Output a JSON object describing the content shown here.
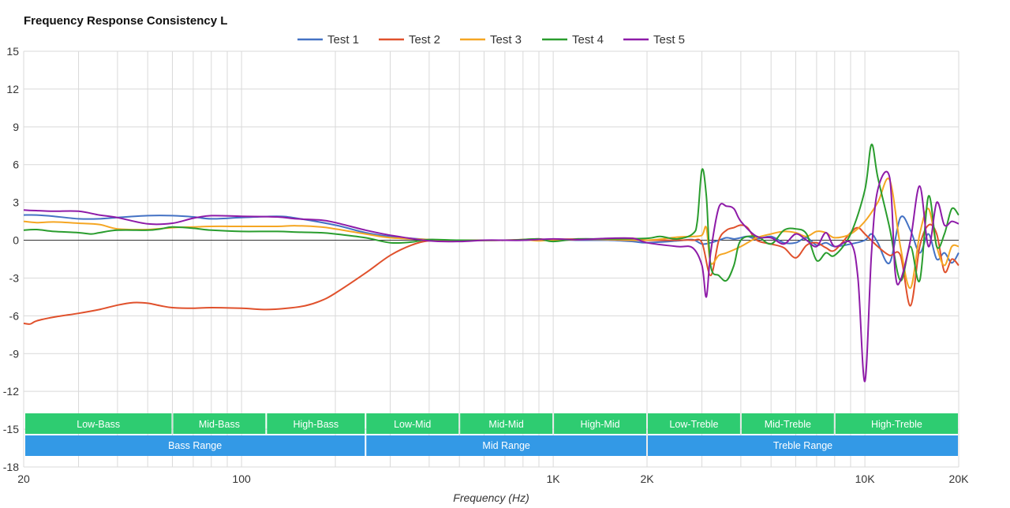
{
  "title": "Frequency Response Consistency L",
  "chart_data": {
    "type": "line",
    "title": "Frequency Response Consistency L",
    "xlabel": "Frequency (Hz)",
    "ylabel": "",
    "xscale": "log",
    "xlim": [
      20,
      20000
    ],
    "ylim": [
      -18,
      15
    ],
    "yticks": [
      15,
      12,
      9,
      6,
      3,
      0,
      -3,
      -6,
      -9,
      -12,
      -15,
      -18
    ],
    "xticks": [
      {
        "value": 20,
        "label": "20"
      },
      {
        "value": 100,
        "label": "100"
      },
      {
        "value": 1000,
        "label": "1K"
      },
      {
        "value": 2000,
        "label": "2K"
      },
      {
        "value": 10000,
        "label": "10K"
      },
      {
        "value": 20000,
        "label": "20K"
      }
    ],
    "grid": true,
    "legend_position": "top-center",
    "series": [
      {
        "name": "Test 1",
        "color": "#4472c4",
        "points": [
          [
            20,
            2.0
          ],
          [
            22,
            2.0
          ],
          [
            25,
            1.9
          ],
          [
            30,
            1.7
          ],
          [
            35,
            1.7
          ],
          [
            40,
            1.8
          ],
          [
            50,
            1.95
          ],
          [
            60,
            1.95
          ],
          [
            70,
            1.85
          ],
          [
            80,
            1.7
          ],
          [
            100,
            1.8
          ],
          [
            130,
            1.9
          ],
          [
            150,
            1.75
          ],
          [
            200,
            1.2
          ],
          [
            250,
            0.6
          ],
          [
            300,
            0.3
          ],
          [
            400,
            0.05
          ],
          [
            500,
            0.0
          ],
          [
            600,
            0.0
          ],
          [
            700,
            0.0
          ],
          [
            800,
            0.0
          ],
          [
            1000,
            0.05
          ],
          [
            1200,
            0.0
          ],
          [
            1500,
            0.0
          ],
          [
            1800,
            -0.1
          ],
          [
            2000,
            -0.2
          ],
          [
            2500,
            -0.05
          ],
          [
            2800,
            0.05
          ],
          [
            3000,
            -0.3
          ],
          [
            3200,
            -0.2
          ],
          [
            3400,
            0.0
          ],
          [
            3600,
            0.2
          ],
          [
            3800,
            0.1
          ],
          [
            4000,
            0.2
          ],
          [
            4200,
            0.3
          ],
          [
            4500,
            0.1
          ],
          [
            5000,
            0.3
          ],
          [
            5500,
            -0.2
          ],
          [
            6000,
            -0.2
          ],
          [
            6500,
            0.2
          ],
          [
            7000,
            -0.4
          ],
          [
            7500,
            -0.2
          ],
          [
            8000,
            -0.5
          ],
          [
            9000,
            -0.3
          ],
          [
            10000,
            0.0
          ],
          [
            10500,
            0.5
          ],
          [
            11000,
            -0.2
          ],
          [
            12000,
            -1.8
          ],
          [
            13000,
            1.8
          ],
          [
            14000,
            0.8
          ],
          [
            15000,
            -1.0
          ],
          [
            16000,
            0.5
          ],
          [
            17000,
            -1.5
          ],
          [
            18000,
            -1.0
          ],
          [
            19000,
            -1.8
          ],
          [
            20000,
            -1.0
          ]
        ]
      },
      {
        "name": "Test 2",
        "color": "#e0512c",
        "points": [
          [
            20,
            -6.6
          ],
          [
            21,
            -6.65
          ],
          [
            22,
            -6.4
          ],
          [
            25,
            -6.1
          ],
          [
            30,
            -5.8
          ],
          [
            35,
            -5.5
          ],
          [
            40,
            -5.15
          ],
          [
            45,
            -4.95
          ],
          [
            50,
            -5.0
          ],
          [
            55,
            -5.2
          ],
          [
            60,
            -5.35
          ],
          [
            70,
            -5.4
          ],
          [
            80,
            -5.35
          ],
          [
            100,
            -5.4
          ],
          [
            120,
            -5.5
          ],
          [
            140,
            -5.4
          ],
          [
            160,
            -5.2
          ],
          [
            180,
            -4.8
          ],
          [
            200,
            -4.2
          ],
          [
            250,
            -2.6
          ],
          [
            300,
            -1.2
          ],
          [
            350,
            -0.4
          ],
          [
            400,
            -0.05
          ],
          [
            500,
            0.0
          ],
          [
            700,
            0.0
          ],
          [
            800,
            0.05
          ],
          [
            900,
            0.1
          ],
          [
            1000,
            0.0
          ],
          [
            1200,
            0.05
          ],
          [
            1500,
            0.1
          ],
          [
            1800,
            0.15
          ],
          [
            2000,
            0.0
          ],
          [
            2500,
            0.0
          ],
          [
            2800,
            0.0
          ],
          [
            3000,
            -0.2
          ],
          [
            3200,
            -2.8
          ],
          [
            3400,
            0.0
          ],
          [
            3600,
            0.8
          ],
          [
            3800,
            1.0
          ],
          [
            4000,
            1.2
          ],
          [
            4200,
            1.0
          ],
          [
            4500,
            0.0
          ],
          [
            5000,
            -0.3
          ],
          [
            5500,
            -0.6
          ],
          [
            6000,
            -1.4
          ],
          [
            6500,
            -0.4
          ],
          [
            7000,
            -0.2
          ],
          [
            7500,
            -0.6
          ],
          [
            8000,
            -0.8
          ],
          [
            9000,
            0.6
          ],
          [
            9500,
            1.0
          ],
          [
            10000,
            0.5
          ],
          [
            11000,
            -0.5
          ],
          [
            12000,
            -1.2
          ],
          [
            13000,
            -1.2
          ],
          [
            14000,
            -5.2
          ],
          [
            15000,
            -0.5
          ],
          [
            16000,
            1.2
          ],
          [
            17000,
            0.5
          ],
          [
            18000,
            -2.5
          ],
          [
            19000,
            -1.5
          ],
          [
            20000,
            -2.0
          ]
        ]
      },
      {
        "name": "Test 3",
        "color": "#f5a623",
        "points": [
          [
            20,
            1.5
          ],
          [
            22,
            1.4
          ],
          [
            25,
            1.45
          ],
          [
            30,
            1.35
          ],
          [
            35,
            1.25
          ],
          [
            40,
            0.9
          ],
          [
            50,
            0.85
          ],
          [
            60,
            1.0
          ],
          [
            70,
            1.05
          ],
          [
            80,
            1.1
          ],
          [
            100,
            1.1
          ],
          [
            130,
            1.1
          ],
          [
            150,
            1.15
          ],
          [
            180,
            1.05
          ],
          [
            200,
            0.9
          ],
          [
            250,
            0.5
          ],
          [
            300,
            0.2
          ],
          [
            400,
            0.05
          ],
          [
            500,
            0.0
          ],
          [
            700,
            0.0
          ],
          [
            800,
            0.05
          ],
          [
            900,
            -0.05
          ],
          [
            1000,
            0.05
          ],
          [
            1200,
            0.1
          ],
          [
            1500,
            0.05
          ],
          [
            2000,
            0.0
          ],
          [
            2500,
            0.25
          ],
          [
            2800,
            0.3
          ],
          [
            3000,
            0.4
          ],
          [
            3100,
            1.0
          ],
          [
            3200,
            -1.8
          ],
          [
            3400,
            -1.2
          ],
          [
            3600,
            -1.0
          ],
          [
            4000,
            -0.5
          ],
          [
            4500,
            0.2
          ],
          [
            5000,
            0.5
          ],
          [
            5500,
            0.7
          ],
          [
            6000,
            0.6
          ],
          [
            6500,
            0.3
          ],
          [
            7000,
            0.7
          ],
          [
            7500,
            0.6
          ],
          [
            8000,
            0.2
          ],
          [
            9000,
            0.5
          ],
          [
            10000,
            1.5
          ],
          [
            11000,
            3.0
          ],
          [
            12000,
            4.8
          ],
          [
            13000,
            -0.5
          ],
          [
            14000,
            -3.8
          ],
          [
            15000,
            0.5
          ],
          [
            16000,
            2.5
          ],
          [
            17000,
            -0.5
          ],
          [
            18000,
            -2.0
          ],
          [
            19000,
            -0.5
          ],
          [
            20000,
            -0.5
          ]
        ]
      },
      {
        "name": "Test 4",
        "color": "#2a9d2e",
        "points": [
          [
            20,
            0.8
          ],
          [
            22,
            0.85
          ],
          [
            25,
            0.7
          ],
          [
            30,
            0.6
          ],
          [
            33,
            0.5
          ],
          [
            35,
            0.6
          ],
          [
            40,
            0.8
          ],
          [
            50,
            0.8
          ],
          [
            55,
            0.9
          ],
          [
            60,
            1.05
          ],
          [
            70,
            0.95
          ],
          [
            80,
            0.8
          ],
          [
            100,
            0.7
          ],
          [
            130,
            0.7
          ],
          [
            150,
            0.65
          ],
          [
            180,
            0.6
          ],
          [
            200,
            0.5
          ],
          [
            250,
            0.2
          ],
          [
            300,
            -0.2
          ],
          [
            350,
            -0.15
          ],
          [
            400,
            0.05
          ],
          [
            500,
            0.0
          ],
          [
            700,
            0.0
          ],
          [
            800,
            0.05
          ],
          [
            900,
            0.1
          ],
          [
            1000,
            -0.1
          ],
          [
            1200,
            0.1
          ],
          [
            1500,
            0.1
          ],
          [
            2000,
            0.15
          ],
          [
            2200,
            0.3
          ],
          [
            2500,
            0.1
          ],
          [
            2800,
            0.5
          ],
          [
            2900,
            1.5
          ],
          [
            3000,
            5.6
          ],
          [
            3100,
            3.5
          ],
          [
            3200,
            -2.0
          ],
          [
            3400,
            -2.8
          ],
          [
            3600,
            -3.2
          ],
          [
            3800,
            -2.0
          ],
          [
            4000,
            0.0
          ],
          [
            4500,
            0.3
          ],
          [
            5000,
            -0.3
          ],
          [
            5500,
            0.8
          ],
          [
            6000,
            0.9
          ],
          [
            6500,
            0.5
          ],
          [
            7000,
            -1.6
          ],
          [
            7500,
            -1.0
          ],
          [
            8000,
            -1.2
          ],
          [
            9000,
            0.5
          ],
          [
            10000,
            4.0
          ],
          [
            10500,
            7.6
          ],
          [
            11000,
            5.0
          ],
          [
            12000,
            1.0
          ],
          [
            13000,
            -3.2
          ],
          [
            14000,
            -0.5
          ],
          [
            15000,
            -3.2
          ],
          [
            16000,
            3.5
          ],
          [
            17000,
            -0.5
          ],
          [
            18000,
            0.5
          ],
          [
            19000,
            2.5
          ],
          [
            20000,
            2.0
          ]
        ]
      },
      {
        "name": "Test 5",
        "color": "#8e1ba8",
        "points": [
          [
            20,
            2.4
          ],
          [
            22,
            2.35
          ],
          [
            25,
            2.3
          ],
          [
            30,
            2.3
          ],
          [
            35,
            2.0
          ],
          [
            40,
            1.8
          ],
          [
            50,
            1.3
          ],
          [
            60,
            1.35
          ],
          [
            70,
            1.75
          ],
          [
            80,
            1.95
          ],
          [
            100,
            1.9
          ],
          [
            130,
            1.85
          ],
          [
            150,
            1.7
          ],
          [
            180,
            1.6
          ],
          [
            200,
            1.4
          ],
          [
            250,
            0.8
          ],
          [
            300,
            0.4
          ],
          [
            400,
            -0.05
          ],
          [
            500,
            -0.1
          ],
          [
            600,
            0.0
          ],
          [
            700,
            0.0
          ],
          [
            800,
            0.0
          ],
          [
            1000,
            0.1
          ],
          [
            1200,
            0.05
          ],
          [
            1500,
            0.15
          ],
          [
            1800,
            0.15
          ],
          [
            2000,
            -0.2
          ],
          [
            2500,
            -0.5
          ],
          [
            2800,
            -0.6
          ],
          [
            3000,
            -2.0
          ],
          [
            3100,
            -4.5
          ],
          [
            3200,
            -1.0
          ],
          [
            3400,
            2.6
          ],
          [
            3600,
            2.7
          ],
          [
            3800,
            2.5
          ],
          [
            4000,
            1.5
          ],
          [
            4500,
            0.3
          ],
          [
            5000,
            0.2
          ],
          [
            5500,
            -0.3
          ],
          [
            6000,
            0.5
          ],
          [
            6500,
            0.0
          ],
          [
            7000,
            -0.5
          ],
          [
            7500,
            0.6
          ],
          [
            8000,
            -0.5
          ],
          [
            9000,
            -0.2
          ],
          [
            9500,
            -3.0
          ],
          [
            10000,
            -11.2
          ],
          [
            10500,
            -1.0
          ],
          [
            11000,
            4.0
          ],
          [
            12000,
            5.0
          ],
          [
            12500,
            -2.5
          ],
          [
            13000,
            -3.2
          ],
          [
            14000,
            0.0
          ],
          [
            15000,
            4.3
          ],
          [
            16000,
            -0.5
          ],
          [
            17000,
            3.0
          ],
          [
            18000,
            1.2
          ],
          [
            19000,
            1.5
          ],
          [
            20000,
            1.3
          ]
        ]
      }
    ],
    "bands": [
      {
        "label": "Low-Bass",
        "from": 20,
        "to": 60
      },
      {
        "label": "Mid-Bass",
        "from": 60,
        "to": 120
      },
      {
        "label": "High-Bass",
        "from": 120,
        "to": 250
      },
      {
        "label": "Low-Mid",
        "from": 250,
        "to": 500
      },
      {
        "label": "Mid-Mid",
        "from": 500,
        "to": 1000
      },
      {
        "label": "High-Mid",
        "from": 1000,
        "to": 2000
      },
      {
        "label": "Low-Treble",
        "from": 2000,
        "to": 4000
      },
      {
        "label": "Mid-Treble",
        "from": 4000,
        "to": 8000
      },
      {
        "label": "High-Treble",
        "from": 8000,
        "to": 20000
      }
    ],
    "ranges": [
      {
        "label": "Bass Range",
        "from": 20,
        "to": 250
      },
      {
        "label": "Mid Range",
        "from": 250,
        "to": 2000
      },
      {
        "label": "Treble Range",
        "from": 2000,
        "to": 20000
      }
    ],
    "colors": {
      "band": "#2ecc71",
      "range": "#3399e6",
      "grid": "#d9d9d9",
      "zero": "#333333"
    }
  }
}
